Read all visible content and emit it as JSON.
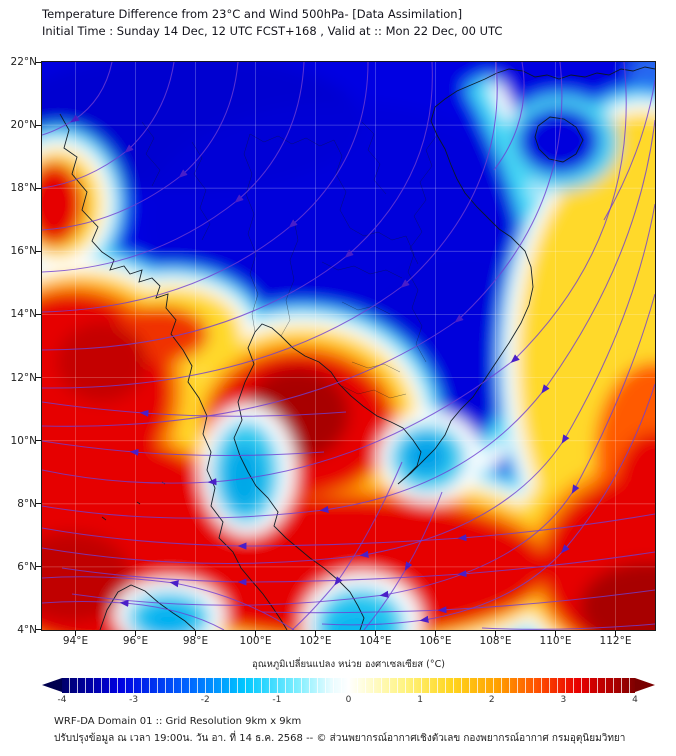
{
  "header": {
    "title": "Temperature Difference from 23°C and Wind 500hPa- [Data Assimilation]",
    "subtitle": "Initial Time : Sunday 14 Dec, 12 UTC FCST+168 , Valid at ::  Mon 22 Dec, 00 UTC"
  },
  "map": {
    "lat_labels": [
      "22°N",
      "20°N",
      "18°N",
      "16°N",
      "14°N",
      "12°N",
      "10°N",
      "8°N",
      "6°N",
      "4°N"
    ],
    "lon_labels": [
      "94°E",
      "96°E",
      "98°E",
      "100°E",
      "102°E",
      "104°E",
      "106°E",
      "108°E",
      "110°E",
      "112°E"
    ]
  },
  "colorbar": {
    "label": "อุณหภูมิเปลี่ยนแปลง หน่วย องศาเซลเซียส (°C)",
    "ticks": [
      "-4",
      "-3",
      "-2",
      "-1",
      "0",
      "1",
      "2",
      "3",
      "4"
    ],
    "min_color": "#00006b",
    "zero_color": "#ffffff",
    "max_color": "#7a0000",
    "cold_color": "#0606e2",
    "warm_color": "#e60000"
  },
  "footer": {
    "line1": "WRF-DA Domain 01 :: Grid Resolution 9km x 9km",
    "line2": "ปรับปรุงข้อมูล ณ เวลา 19:00น. วัน อา. ที่ 14 ธ.ค. 2568 -- © ส่วนพยากรณ์อากาศเชิงตัวเลข กองพยากรณ์อากาศ กรมอุตุนิยมวิทยา"
  },
  "chart_data": {
    "type": "heatmap",
    "title": "Temperature Difference from 23°C and Wind 500hPa- [Data Assimilation]",
    "overlay": "500 hPa wind streamlines with direction arrows",
    "x_axis": {
      "unit": "°E",
      "ticks": [
        94,
        96,
        98,
        100,
        102,
        104,
        106,
        108,
        110,
        112
      ],
      "range": [
        92.9,
        113.3
      ]
    },
    "y_axis": {
      "unit": "°N",
      "ticks": [
        22,
        20,
        18,
        16,
        14,
        12,
        10,
        8,
        6,
        4
      ],
      "range": [
        4,
        22
      ]
    },
    "colorbar": {
      "units": "°C",
      "ticks": [
        -4,
        -3,
        -2,
        -1,
        0,
        1,
        2,
        3,
        4
      ],
      "range": [
        -4,
        4
      ]
    },
    "regions": [
      {
        "area": "Northern/Northeastern Thailand, Laos, Cambodia, northern Vietnam",
        "anomaly_c": -3.5,
        "appearance": "deep blue"
      },
      {
        "area": "Bay of Bengal / Myanmar coast (west edge, 5N-17N)",
        "anomaly_c": 3.5,
        "appearance": "red"
      },
      {
        "area": "Gulf of Thailand core (100-102E, 10-13N)",
        "anomaly_c": 4,
        "appearance": "dark red"
      },
      {
        "area": "South China Sea east of Vietnam (106-113E, 8-20N)",
        "anomaly_c": 1.5,
        "appearance": "yellow"
      },
      {
        "area": "Hainan Island vicinity",
        "anomaly_c": -3,
        "appearance": "blue pocket in cyan band"
      },
      {
        "area": "Southern peninsula pockets (98-99E 8-11N, 100-101E 4-6N, Sumatra tip)",
        "anomaly_c": -1.5,
        "appearance": "cyan pockets"
      },
      {
        "area": "Far south / bottom-right corner",
        "anomaly_c": 3.8,
        "appearance": "red to dark red"
      }
    ],
    "wind_summary": "Northeasterly flow over the north curving to westward flow across the south; anticyclonic curvature in the far southwest"
  }
}
